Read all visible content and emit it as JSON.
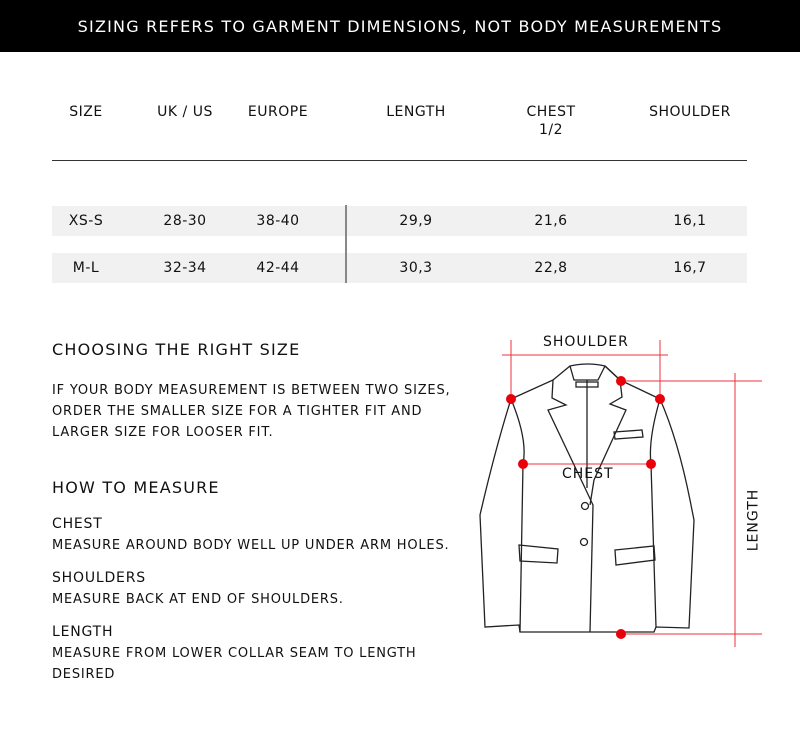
{
  "banner": "SIZING REFERS TO GARMENT DIMENSIONS, NOT BODY MEASUREMENTS",
  "table": {
    "headers": [
      "SIZE",
      "UK / US",
      "EUROPE",
      "LENGTH",
      "CHEST",
      "SHOULDER"
    ],
    "chest_sub": "1/2",
    "rows": [
      [
        "XS-S",
        "28-30",
        "38-40",
        "29,9",
        "21,6",
        "16,1"
      ],
      [
        "M-L",
        "32-34",
        "42-44",
        "30,3",
        "22,8",
        "16,7"
      ]
    ]
  },
  "choosing": {
    "title": "CHOOSING THE RIGHT SIZE",
    "lines": [
      "IF YOUR BODY MEASUREMENT IS BETWEEN TWO SIZES,",
      "ORDER THE SMALLER SIZE FOR A TIGHTER FIT AND",
      "LARGER SIZE FOR LOOSER FIT."
    ]
  },
  "how": {
    "title": "HOW TO MEASURE",
    "items": [
      {
        "label": "CHEST",
        "lines": [
          "MEASURE AROUND BODY WELL UP UNDER ARM HOLES."
        ]
      },
      {
        "label": "SHOULDERS",
        "lines": [
          "MEASURE BACK AT END OF SHOULDERS."
        ]
      },
      {
        "label": "LENGTH",
        "lines": [
          "MEASURE FROM LOWER COLLAR SEAM TO LENGTH",
          "DESIRED"
        ]
      }
    ]
  },
  "diagram": {
    "shoulder": "SHOULDER",
    "chest": "CHEST",
    "length": "LENGTH",
    "accent": "#e8000b"
  }
}
